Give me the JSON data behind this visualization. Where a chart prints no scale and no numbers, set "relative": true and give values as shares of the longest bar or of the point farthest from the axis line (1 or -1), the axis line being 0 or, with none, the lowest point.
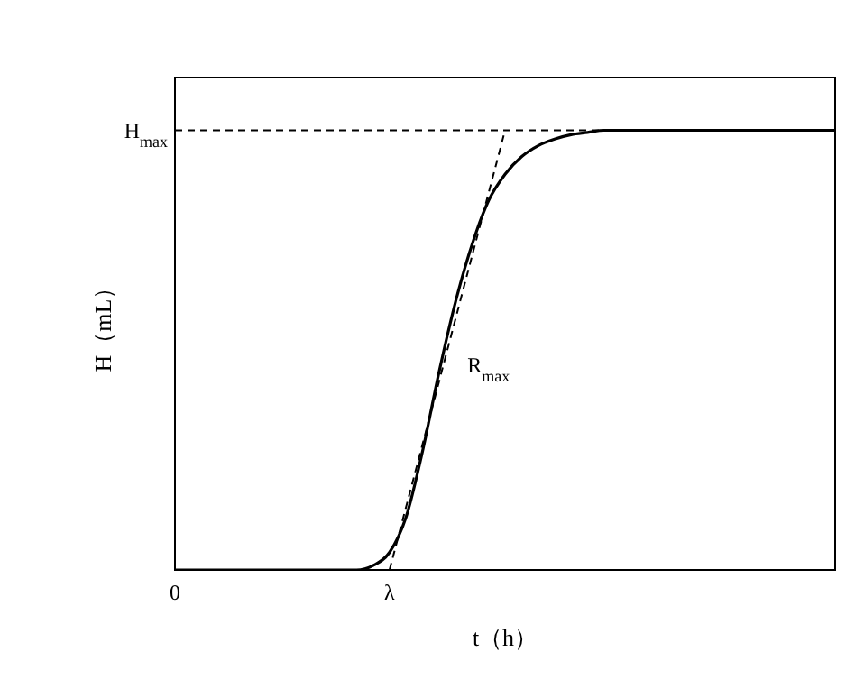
{
  "chart_data": {
    "type": "line",
    "relative": true,
    "xlabel": "t（h）",
    "ylabel": "H（mL）",
    "categories": [
      "0",
      null,
      null,
      null,
      null,
      null,
      null,
      null,
      null,
      null,
      null,
      null,
      null,
      "λ",
      null,
      null,
      null,
      null,
      null,
      null,
      null,
      null,
      null,
      null,
      null,
      null,
      null,
      null,
      null,
      null,
      null,
      null,
      null,
      null,
      null,
      null,
      null,
      null,
      null,
      null,
      null
    ],
    "series": [
      {
        "color": "#000000",
        "line_style": "solid",
        "values": [
          0,
          0,
          0,
          0,
          0,
          0,
          0,
          0,
          0,
          0,
          0,
          0,
          0.01,
          0.04,
          0.12,
          0.27,
          0.45,
          0.61,
          0.74,
          0.84,
          0.9,
          0.94,
          0.965,
          0.98,
          0.99,
          0.995,
          1,
          1,
          1,
          1,
          1,
          1,
          1,
          1,
          1,
          1,
          1,
          1,
          1,
          1,
          1
        ]
      },
      {
        "color": "#000000",
        "line_style": "dashed",
        "values": [
          null,
          null,
          null,
          null,
          null,
          null,
          null,
          null,
          null,
          null,
          null,
          null,
          null,
          0,
          null,
          null,
          null,
          null,
          null,
          null,
          1,
          null,
          null,
          null,
          null,
          null,
          null,
          null,
          null,
          null,
          null,
          null,
          null,
          null,
          null,
          null,
          null,
          null,
          null,
          null,
          null
        ]
      }
    ],
    "ref_lines": [
      {
        "axis": "y",
        "value": 1,
        "label": "H$_{max}$",
        "line_style": "dashed",
        "color": "#000000"
      }
    ],
    "annotations": [
      "R$_{max}$"
    ],
    "marker": "none"
  }
}
